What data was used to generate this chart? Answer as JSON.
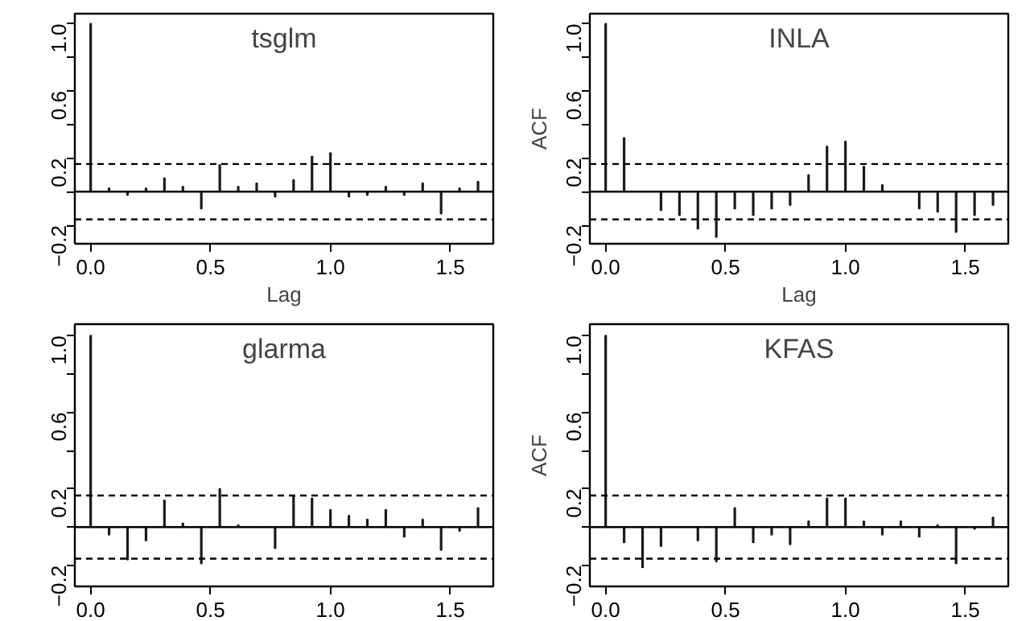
{
  "chart_data": [
    {
      "type": "bar",
      "title": "tsglm",
      "xlabel": "Lag",
      "color": "#1a1a1a",
      "x": [
        0,
        0.0769,
        0.1538,
        0.2308,
        0.3077,
        0.3846,
        0.4615,
        0.5385,
        0.6154,
        0.6923,
        0.7692,
        0.8462,
        0.9231,
        1.0,
        1.0769,
        1.1538,
        1.2308,
        1.3077,
        1.3846,
        1.4615,
        1.5385,
        1.6154
      ],
      "values": [
        1.0,
        0.02,
        -0.02,
        0.02,
        0.08,
        0.03,
        -0.1,
        0.16,
        0.03,
        0.05,
        -0.03,
        0.07,
        0.21,
        0.23,
        -0.03,
        -0.02,
        0.03,
        -0.02,
        0.05,
        -0.13,
        0.02,
        0.06
      ],
      "xlim": [
        -0.066,
        1.679
      ],
      "ylim": [
        -0.31,
        1.06
      ],
      "xticks": [
        {
          "value": 0,
          "label": "0.0"
        },
        {
          "value": 0.5,
          "label": "0.5"
        },
        {
          "value": 1,
          "label": "1.0"
        },
        {
          "value": 1.5,
          "label": "1.5"
        }
      ],
      "yticks": [
        {
          "value": -0.2,
          "label": "−0.2"
        },
        {
          "value": 0,
          "label": null
        },
        {
          "value": 0.2,
          "label": "0.2"
        },
        {
          "value": 0.4,
          "label": null
        },
        {
          "value": 0.6,
          "label": "0.6"
        },
        {
          "value": 0.8,
          "label": null
        },
        {
          "value": 1,
          "label": "1.0"
        }
      ],
      "ref_lines": [
        {
          "axis": "y",
          "value": 0,
          "line_style": "solid"
        },
        {
          "axis": "y",
          "value": 0.165,
          "line_style": "dashed"
        },
        {
          "axis": "y",
          "value": -0.165,
          "line_style": "dashed"
        }
      ]
    },
    {
      "type": "bar",
      "title": "INLA",
      "xlabel": "Lag",
      "ylabel": "ACF",
      "color": "#1a1a1a",
      "x": [
        0,
        0.0769,
        0.1538,
        0.2308,
        0.3077,
        0.3846,
        0.4615,
        0.5385,
        0.6154,
        0.6923,
        0.7692,
        0.8462,
        0.9231,
        1.0,
        1.0769,
        1.1538,
        1.2308,
        1.3077,
        1.3846,
        1.4615,
        1.5385,
        1.6154
      ],
      "values": [
        1.0,
        0.32,
        0.0,
        -0.11,
        -0.14,
        -0.22,
        -0.27,
        -0.1,
        -0.14,
        -0.1,
        -0.08,
        0.1,
        0.27,
        0.3,
        0.15,
        0.04,
        0.0,
        -0.1,
        -0.12,
        -0.24,
        -0.14,
        -0.08
      ],
      "xlim": [
        -0.066,
        1.679
      ],
      "ylim": [
        -0.31,
        1.06
      ],
      "xticks": [
        {
          "value": 0,
          "label": "0.0"
        },
        {
          "value": 0.5,
          "label": "0.5"
        },
        {
          "value": 1,
          "label": "1.0"
        },
        {
          "value": 1.5,
          "label": "1.5"
        }
      ],
      "yticks": [
        {
          "value": -0.2,
          "label": "−0.2"
        },
        {
          "value": 0,
          "label": null
        },
        {
          "value": 0.2,
          "label": "0.2"
        },
        {
          "value": 0.4,
          "label": null
        },
        {
          "value": 0.6,
          "label": "0.6"
        },
        {
          "value": 0.8,
          "label": null
        },
        {
          "value": 1,
          "label": "1.0"
        }
      ],
      "ref_lines": [
        {
          "axis": "y",
          "value": 0,
          "line_style": "solid"
        },
        {
          "axis": "y",
          "value": 0.165,
          "line_style": "dashed"
        },
        {
          "axis": "y",
          "value": -0.165,
          "line_style": "dashed"
        }
      ]
    },
    {
      "type": "bar",
      "title": "glarma",
      "color": "#1a1a1a",
      "x": [
        0,
        0.0769,
        0.1538,
        0.2308,
        0.3077,
        0.3846,
        0.4615,
        0.5385,
        0.6154,
        0.6923,
        0.7692,
        0.8462,
        0.9231,
        1.0,
        1.0769,
        1.1538,
        1.2308,
        1.3077,
        1.3846,
        1.4615,
        1.5385,
        1.6154
      ],
      "values": [
        1.0,
        -0.04,
        -0.17,
        -0.07,
        0.14,
        0.02,
        -0.19,
        0.2,
        0.01,
        0.0,
        -0.11,
        0.16,
        0.15,
        0.09,
        0.06,
        0.04,
        0.09,
        -0.05,
        0.04,
        -0.12,
        -0.02,
        0.1
      ],
      "xlim": [
        -0.066,
        1.679
      ],
      "ylim": [
        -0.31,
        1.06
      ],
      "xticks": [
        {
          "value": 0,
          "label": "0.0"
        },
        {
          "value": 0.5,
          "label": "0.5"
        },
        {
          "value": 1,
          "label": "1.0"
        },
        {
          "value": 1.5,
          "label": "1.5"
        }
      ],
      "yticks": [
        {
          "value": -0.2,
          "label": "−0.2"
        },
        {
          "value": 0,
          "label": null
        },
        {
          "value": 0.2,
          "label": "0.2"
        },
        {
          "value": 0.4,
          "label": null
        },
        {
          "value": 0.6,
          "label": "0.6"
        },
        {
          "value": 0.8,
          "label": null
        },
        {
          "value": 1,
          "label": "1.0"
        }
      ],
      "ref_lines": [
        {
          "axis": "y",
          "value": 0,
          "line_style": "solid"
        },
        {
          "axis": "y",
          "value": 0.165,
          "line_style": "dashed"
        },
        {
          "axis": "y",
          "value": -0.165,
          "line_style": "dashed"
        }
      ]
    },
    {
      "type": "bar",
      "title": "KFAS",
      "ylabel": "ACF",
      "color": "#1a1a1a",
      "x": [
        0,
        0.0769,
        0.1538,
        0.2308,
        0.3077,
        0.3846,
        0.4615,
        0.5385,
        0.6154,
        0.6923,
        0.7692,
        0.8462,
        0.9231,
        1.0,
        1.0769,
        1.1538,
        1.2308,
        1.3077,
        1.3846,
        1.4615,
        1.5385,
        1.6154
      ],
      "values": [
        1.0,
        -0.08,
        -0.21,
        -0.1,
        0.0,
        -0.07,
        -0.18,
        0.1,
        -0.08,
        -0.04,
        -0.09,
        0.03,
        0.15,
        0.15,
        0.03,
        -0.04,
        0.03,
        -0.05,
        0.01,
        -0.19,
        -0.01,
        0.05
      ],
      "xlim": [
        -0.066,
        1.679
      ],
      "ylim": [
        -0.31,
        1.06
      ],
      "xticks": [
        {
          "value": 0,
          "label": "0.0"
        },
        {
          "value": 0.5,
          "label": "0.5"
        },
        {
          "value": 1,
          "label": "1.0"
        },
        {
          "value": 1.5,
          "label": "1.5"
        }
      ],
      "yticks": [
        {
          "value": -0.2,
          "label": "−0.2"
        },
        {
          "value": 0,
          "label": null
        },
        {
          "value": 0.2,
          "label": "0.2"
        },
        {
          "value": 0.4,
          "label": null
        },
        {
          "value": 0.6,
          "label": "0.6"
        },
        {
          "value": 0.8,
          "label": null
        },
        {
          "value": 1,
          "label": "1.0"
        }
      ],
      "ref_lines": [
        {
          "axis": "y",
          "value": 0,
          "line_style": "solid"
        },
        {
          "axis": "y",
          "value": 0.165,
          "line_style": "dashed"
        },
        {
          "axis": "y",
          "value": -0.165,
          "line_style": "dashed"
        }
      ]
    }
  ]
}
